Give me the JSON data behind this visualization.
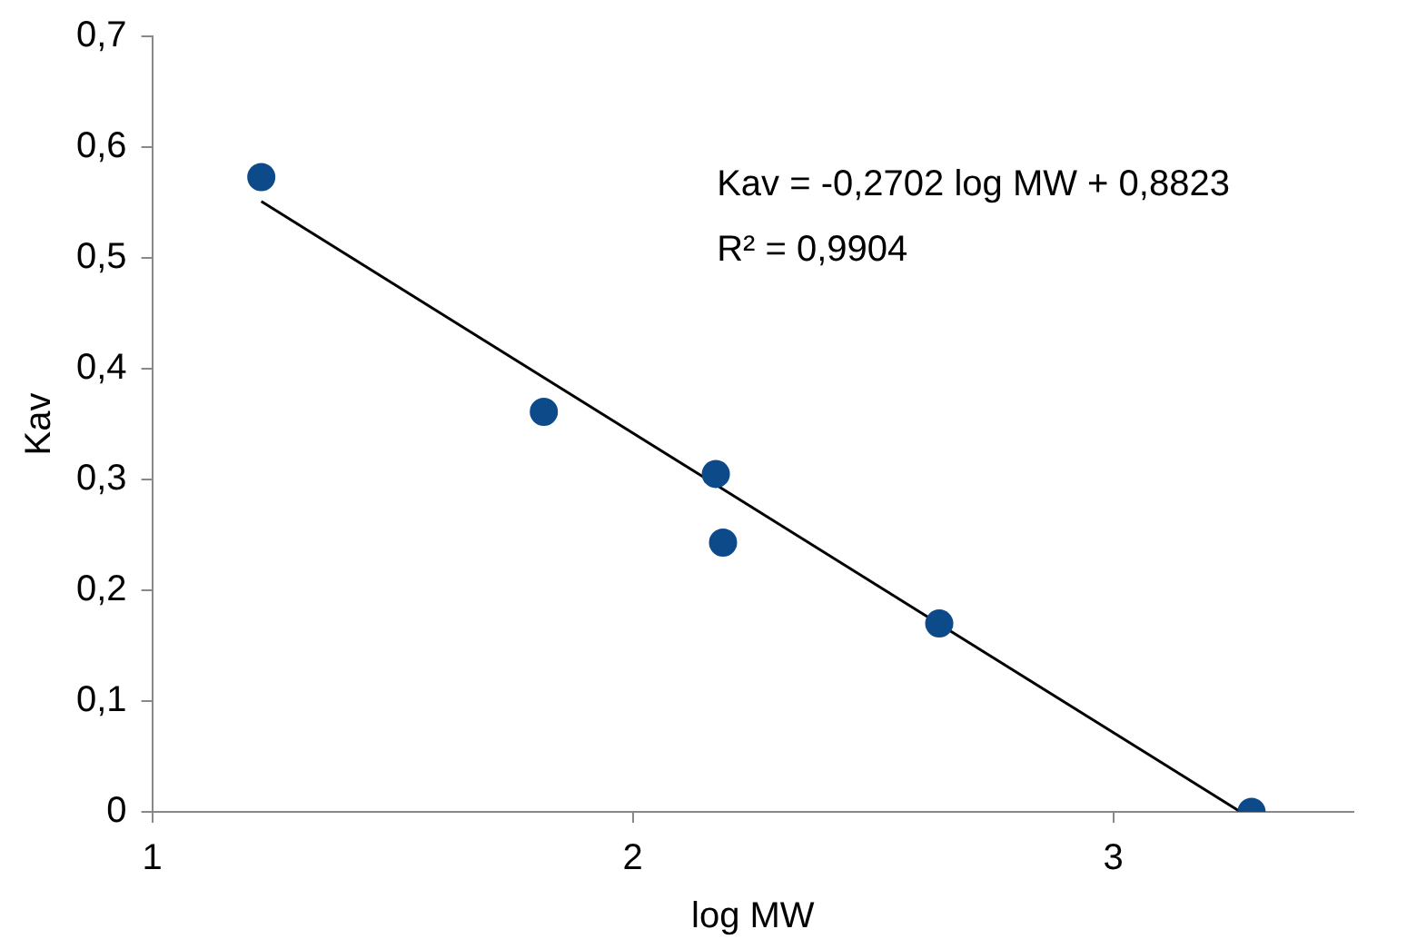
{
  "chart_data": {
    "type": "scatter",
    "xlabel": "log MW",
    "ylabel": "Kav",
    "xlim": [
      1,
      3.5
    ],
    "xticks": [
      1,
      2,
      3
    ],
    "ylim": [
      0,
      0.7
    ],
    "yticks": [
      {
        "value": 0,
        "label": "0"
      },
      {
        "value": 0.1,
        "label": "0,1"
      },
      {
        "value": 0.2,
        "label": "0,2"
      },
      {
        "value": 0.3,
        "label": "0,3"
      },
      {
        "value": 0.4,
        "label": "0,4"
      },
      {
        "value": 0.5,
        "label": "0,5"
      },
      {
        "value": 0.6,
        "label": "0,6"
      },
      {
        "value": 0.7,
        "label": "0,7"
      }
    ],
    "grid": false,
    "legend": false,
    "marker": "circle",
    "series": [
      {
        "color": "#0d4a8a",
        "x": [
          1.227,
          1.815,
          2.173,
          2.188,
          2.638,
          3.288
        ],
        "values": [
          0.573,
          0.361,
          0.305,
          0.243,
          0.17,
          0
        ]
      },
      {
        "type": "line",
        "color": "#000000",
        "x": [
          1.227,
          3.265
        ],
        "values": [
          0.551,
          0
        ],
        "marker": "none",
        "line_style": "solid"
      }
    ],
    "annotations": [
      "Kav = -0,2702 log MW + 0,8823",
      "R² = 0,9904"
    ]
  }
}
